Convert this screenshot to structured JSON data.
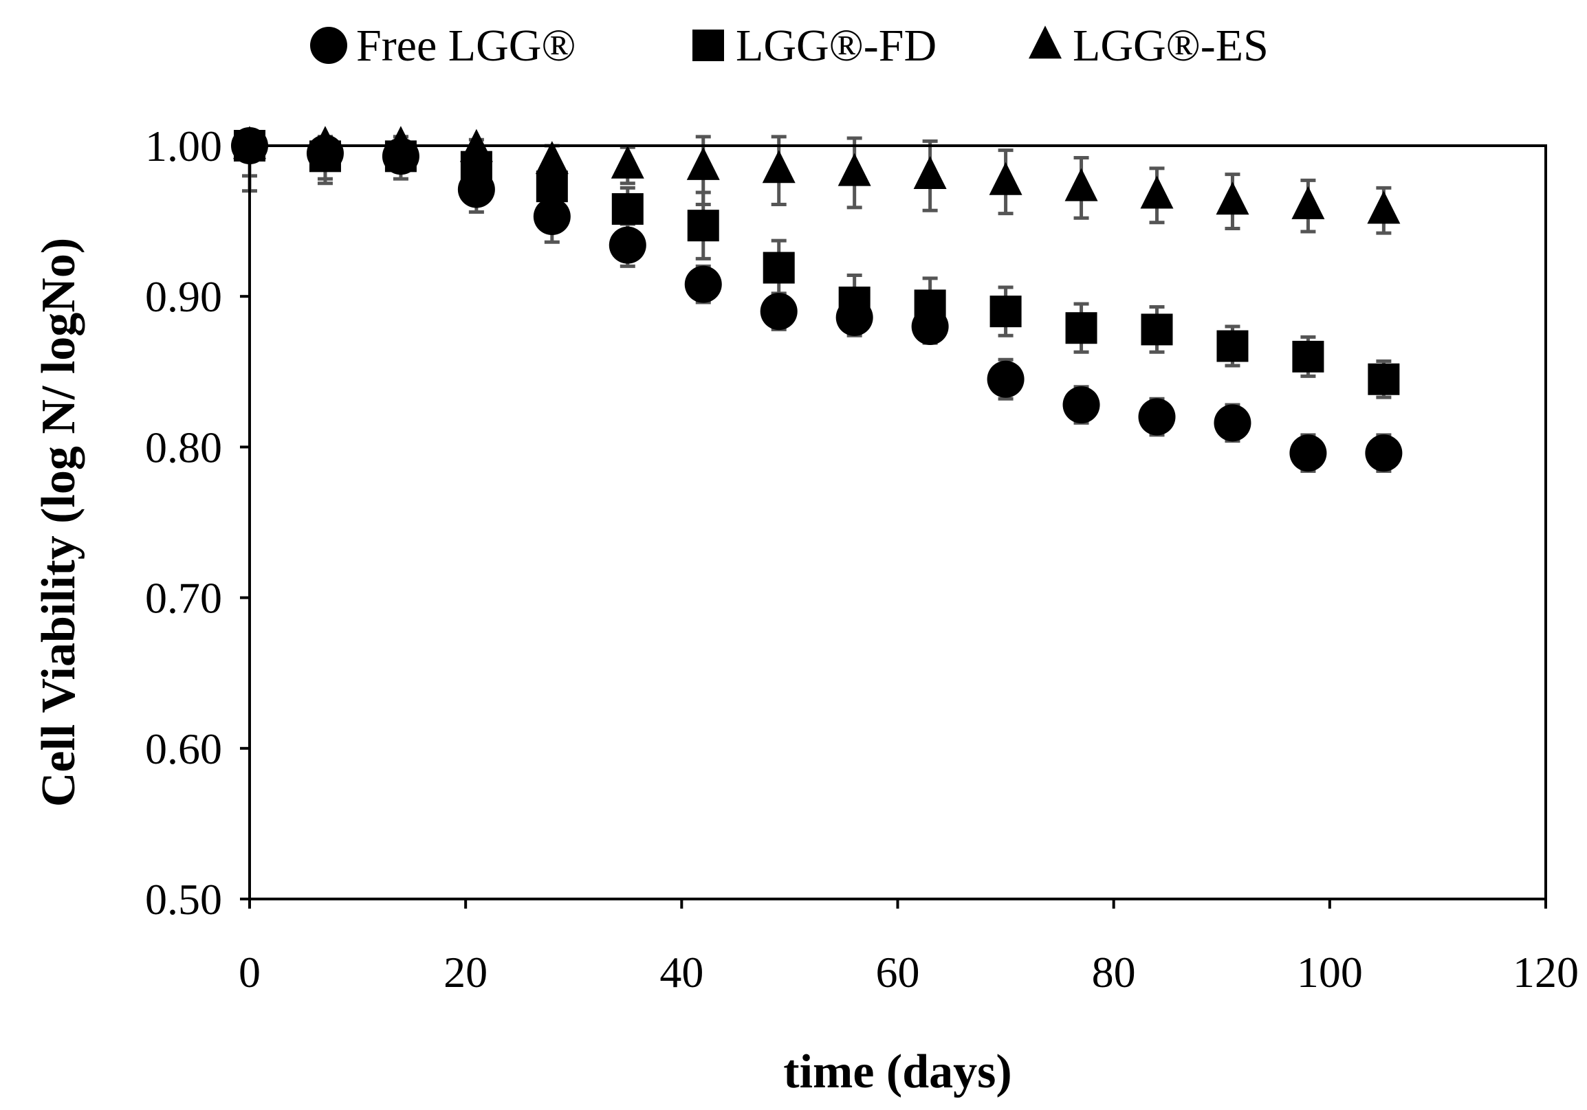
{
  "chart_data": {
    "type": "scatter",
    "title": "",
    "xlabel": "time (days)",
    "ylabel": "Cell Viability (log N/ logNo)",
    "xlim": [
      0,
      120
    ],
    "ylim": [
      0.5,
      1.0
    ],
    "x_ticks": [
      0,
      20,
      40,
      60,
      80,
      100,
      120
    ],
    "x_tick_labels": [
      "0",
      "20",
      "40",
      "60",
      "80",
      "100",
      "120"
    ],
    "y_ticks": [
      0.5,
      0.6,
      0.7,
      0.8,
      0.9,
      1.0
    ],
    "y_tick_labels": [
      "0.50",
      "0.60",
      "0.70",
      "0.80",
      "0.90",
      "1.00"
    ],
    "grid": false,
    "legend_position": "top",
    "x": [
      0,
      7,
      14,
      21,
      28,
      35,
      42,
      49,
      56,
      63,
      70,
      77,
      84,
      91,
      98,
      105
    ],
    "series": [
      {
        "name": "Free LGG®",
        "marker": "circle",
        "values": [
          1.0,
          0.995,
          0.993,
          0.971,
          0.953,
          0.934,
          0.908,
          0.89,
          0.886,
          0.88,
          0.845,
          0.828,
          0.82,
          0.816,
          0.796,
          0.796
        ],
        "errors": [
          0.03,
          0.02,
          0.015,
          0.015,
          0.017,
          0.014,
          0.012,
          0.012,
          0.012,
          0.011,
          0.013,
          0.012,
          0.012,
          0.012,
          0.012,
          0.012
        ]
      },
      {
        "name": "LGG®-FD",
        "marker": "square",
        "values": [
          1.0,
          0.993,
          0.993,
          0.986,
          0.973,
          0.958,
          0.947,
          0.919,
          0.896,
          0.894,
          0.89,
          0.879,
          0.878,
          0.867,
          0.86,
          0.845
        ],
        "errors": [
          0.02,
          0.015,
          0.01,
          0.01,
          0.012,
          0.014,
          0.022,
          0.018,
          0.018,
          0.018,
          0.016,
          0.016,
          0.015,
          0.013,
          0.013,
          0.012
        ]
      },
      {
        "name": "LGG®-ES",
        "marker": "triangle",
        "values": [
          1.0,
          1.0,
          1.0,
          0.998,
          0.99,
          0.987,
          0.986,
          0.984,
          0.982,
          0.98,
          0.976,
          0.972,
          0.967,
          0.963,
          0.96,
          0.957
        ],
        "errors": [
          0.01,
          0.006,
          0.006,
          0.006,
          0.01,
          0.012,
          0.025,
          0.023,
          0.023,
          0.023,
          0.021,
          0.02,
          0.018,
          0.018,
          0.017,
          0.015
        ]
      }
    ]
  }
}
